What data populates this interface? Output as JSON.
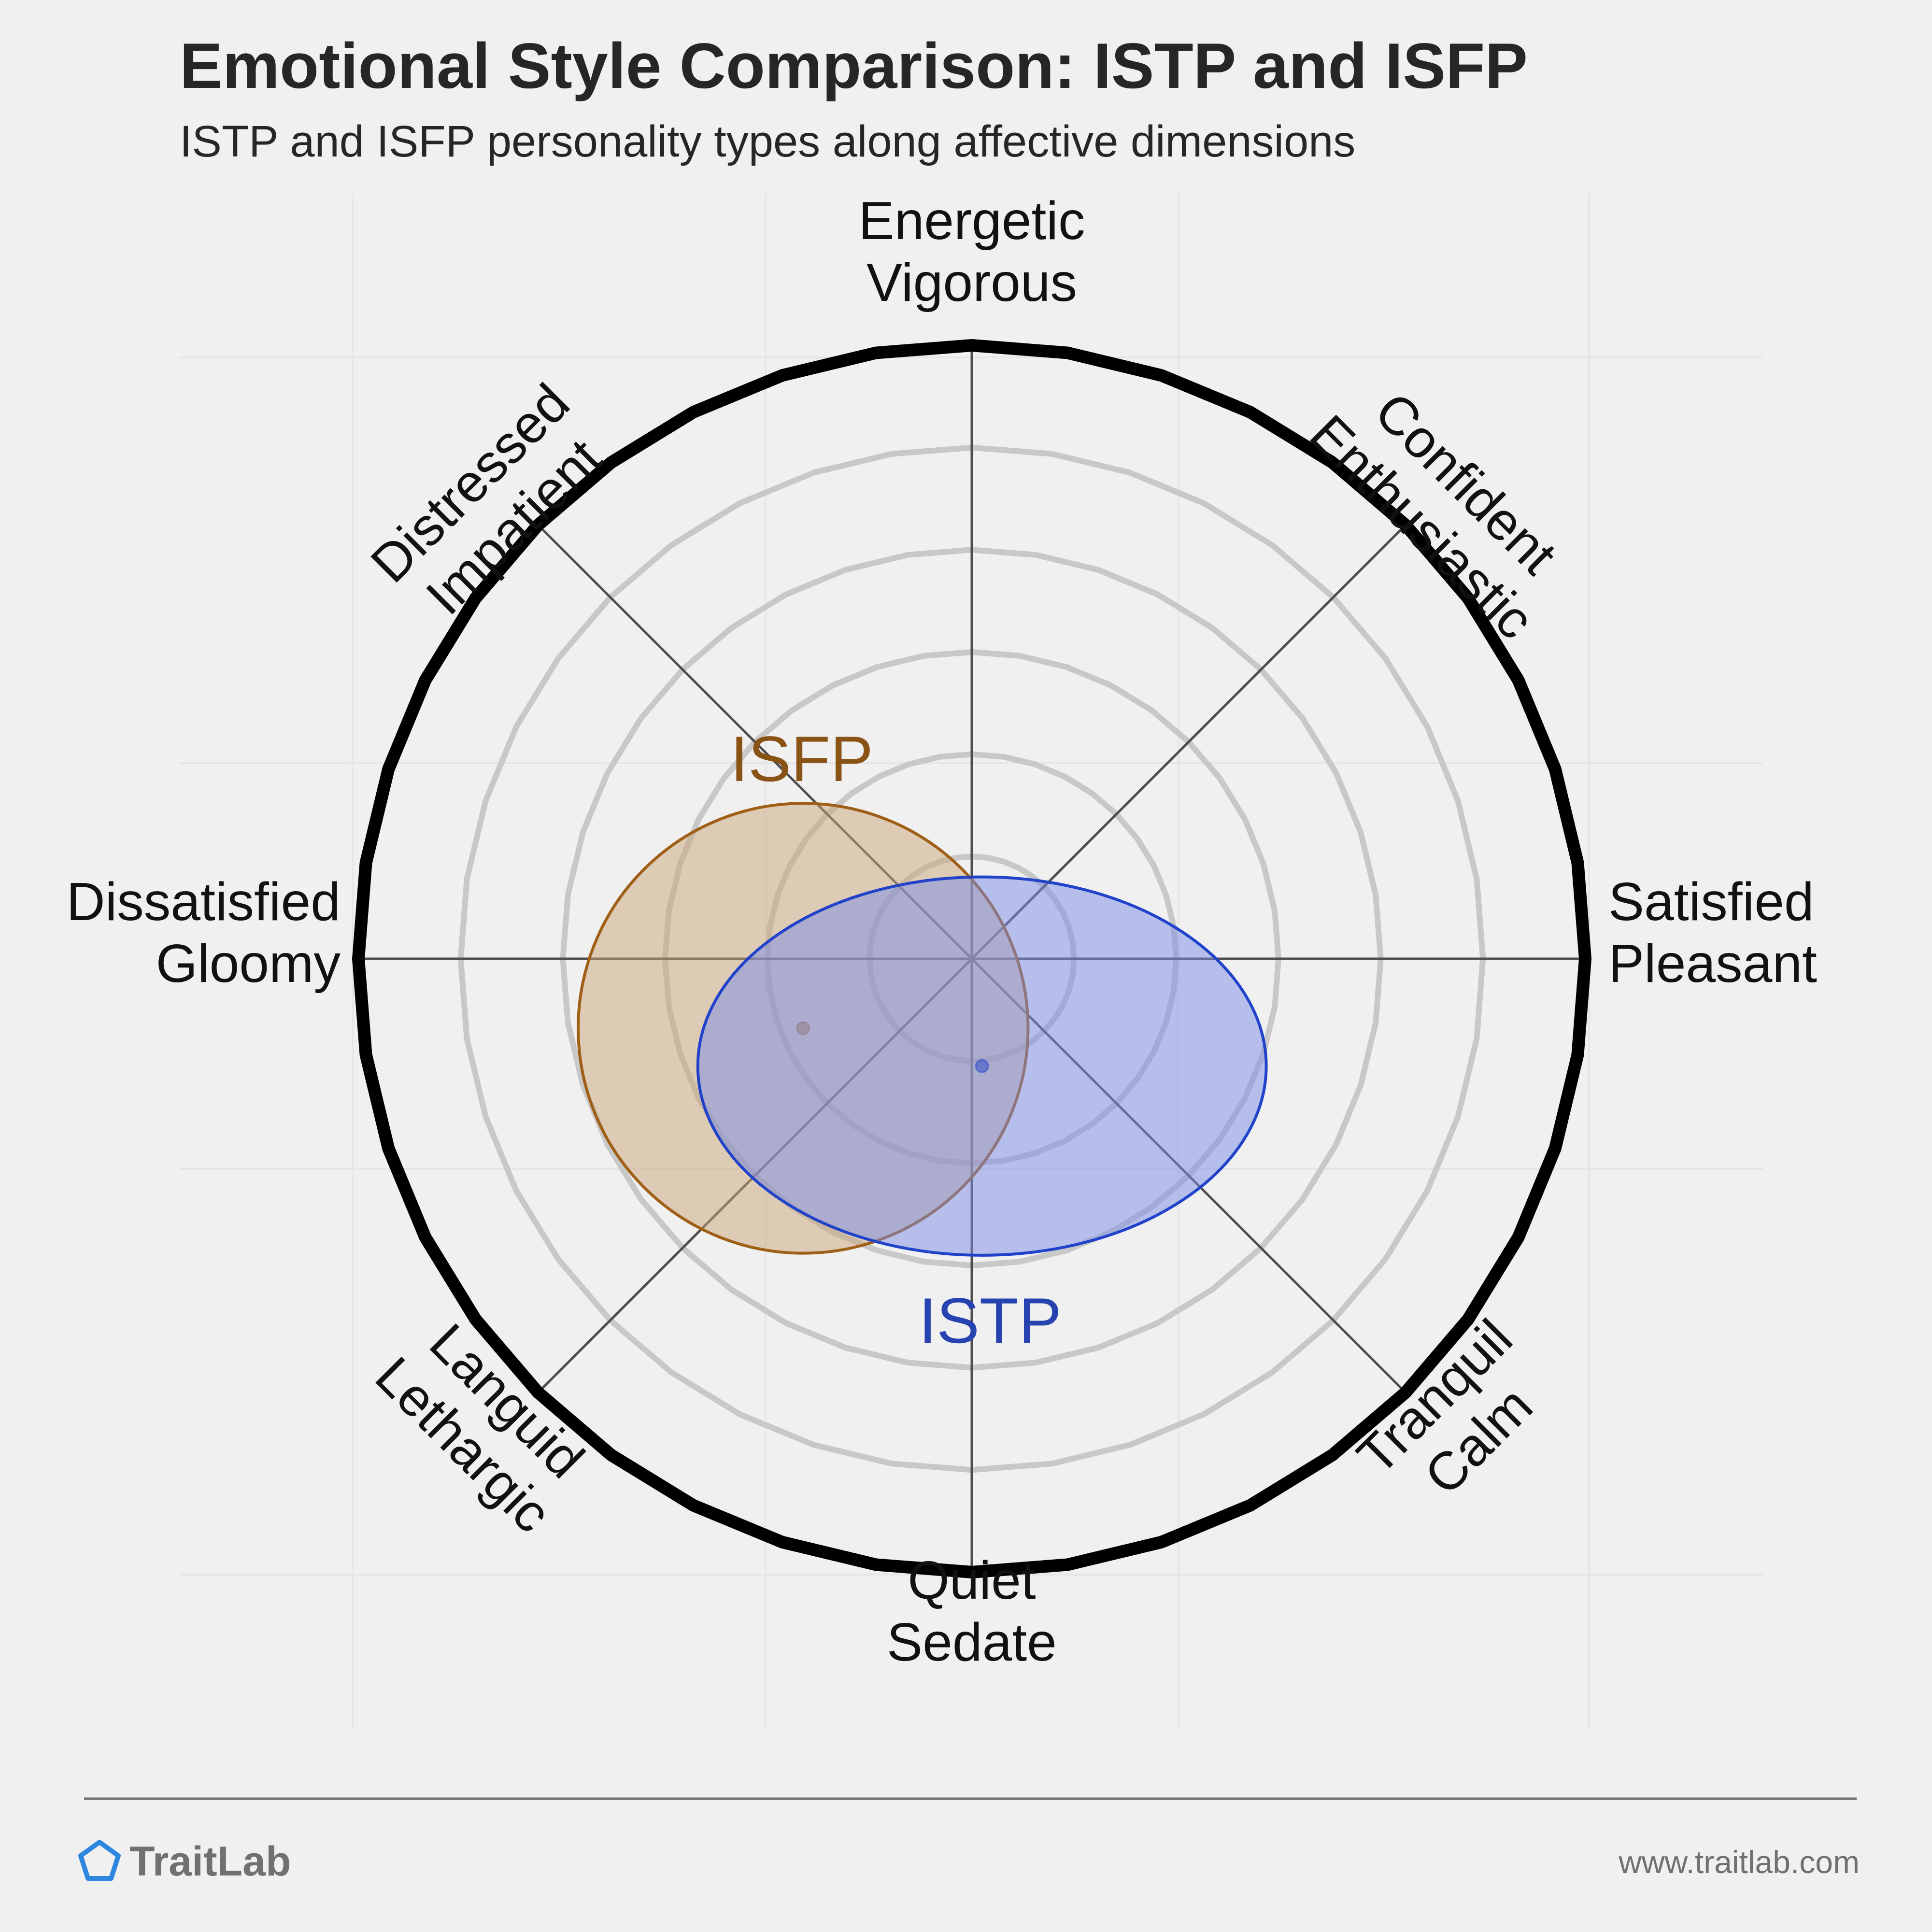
{
  "header": {
    "title": "Emotional Style Comparison: ISTP and ISFP",
    "subtitle": "ISTP and ISFP personality types along affective dimensions"
  },
  "footer": {
    "brand": "TraitLab",
    "url": "www.traitlab.com",
    "brand_icon": "pentagon-icon"
  },
  "chart_data": {
    "type": "radial-affect-map",
    "axes": [
      {
        "name": "energetic",
        "lines": [
          "Energetic",
          "Vigorous"
        ],
        "angle_deg": 90
      },
      {
        "name": "confident",
        "lines": [
          "Confident",
          "Enthusiastic"
        ],
        "angle_deg": 45
      },
      {
        "name": "satisfied",
        "lines": [
          "Satisfied",
          "Pleasant"
        ],
        "angle_deg": 0
      },
      {
        "name": "tranquil",
        "lines": [
          "Tranquil",
          "Calm"
        ],
        "angle_deg": -45
      },
      {
        "name": "quiet",
        "lines": [
          "Quiet",
          "Sedate"
        ],
        "angle_deg": -90
      },
      {
        "name": "languid",
        "lines": [
          "Languid",
          "Lethargic"
        ],
        "angle_deg": -135
      },
      {
        "name": "dissatisfied",
        "lines": [
          "Dissatisfied",
          "Gloomy"
        ],
        "angle_deg": 180
      },
      {
        "name": "distressed",
        "lines": [
          "Distressed",
          "Impatient"
        ],
        "angle_deg": 135
      }
    ],
    "x_range": [
      -6,
      6
    ],
    "y_range": [
      -6,
      6
    ],
    "rings": [
      1,
      2,
      3,
      4,
      5
    ],
    "series": [
      {
        "name": "ISFP",
        "center": {
          "x": -1.65,
          "y": -0.68
        },
        "radius": {
          "x": 2.2,
          "y": 2.2
        },
        "fill": "#c9a57c",
        "stroke": "#a05f16",
        "label_color": "#8a5316"
      },
      {
        "name": "ISTP",
        "center": {
          "x": 0.1,
          "y": -1.05
        },
        "radius": {
          "x": 2.78,
          "y": 1.85
        },
        "fill": "#7b8de6",
        "stroke": "#2143c9",
        "label_color": "#2643b0"
      }
    ],
    "colors": {
      "background": "#f0f0f0",
      "outer_ring": "#000000",
      "inner_rings": "#c8c8c8",
      "axes": "#4d4d4d"
    }
  }
}
